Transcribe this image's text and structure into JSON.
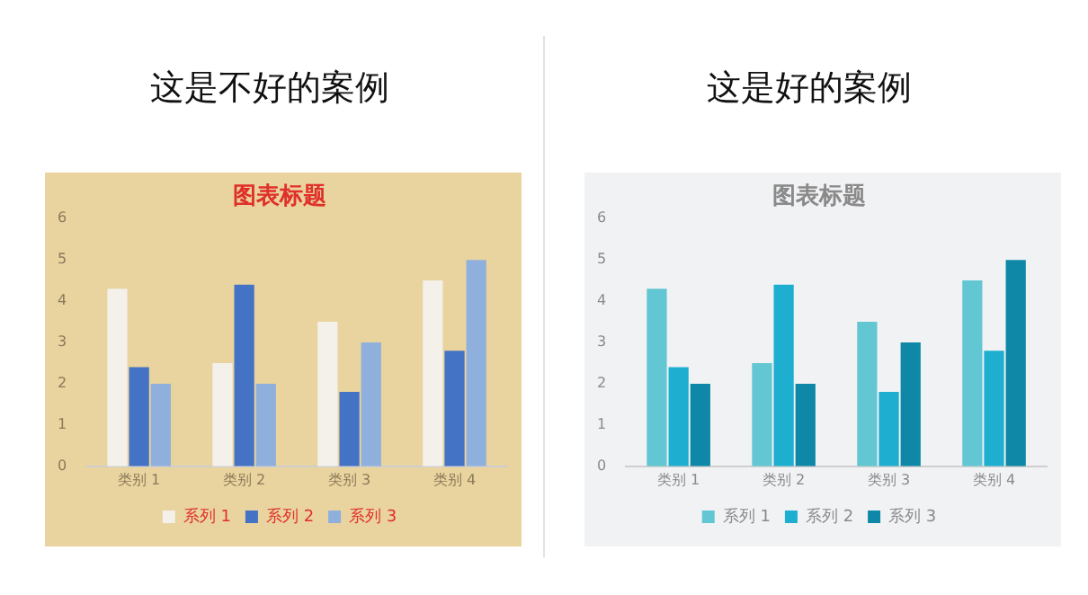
{
  "chart_data": [
    {
      "type": "bar",
      "title": "这是不好的案例",
      "subtitle": "图表标题",
      "categories": [
        "类别 1",
        "类别 2",
        "类别 3",
        "类别 4"
      ],
      "series": [
        {
          "name": "系列 1",
          "color": "#f4f1ea",
          "values": [
            4.3,
            2.5,
            3.5,
            4.5
          ]
        },
        {
          "name": "系列 2",
          "color": "#4472c4",
          "values": [
            2.4,
            4.4,
            1.8,
            2.8
          ]
        },
        {
          "name": "系列 3",
          "color": "#8fb0dc",
          "values": [
            2,
            2,
            3,
            5
          ]
        }
      ],
      "ylim": [
        0,
        6
      ],
      "yticks": [
        0,
        1,
        2,
        3,
        4,
        5,
        6
      ],
      "grid": false,
      "legend": "bottom"
    },
    {
      "type": "bar",
      "title": "这是好的案例",
      "subtitle": "图表标题",
      "categories": [
        "类别 1",
        "类别 2",
        "类别 3",
        "类别 4"
      ],
      "series": [
        {
          "name": "系列 1",
          "color": "#62c6d3",
          "values": [
            4.3,
            2.5,
            3.5,
            4.5
          ]
        },
        {
          "name": "系列 2",
          "color": "#1daed0",
          "values": [
            2.4,
            4.4,
            1.8,
            2.8
          ]
        },
        {
          "name": "系列 3",
          "color": "#0e88a6",
          "values": [
            2,
            2,
            3,
            5
          ]
        }
      ],
      "ylim": [
        0,
        6
      ],
      "yticks": [
        0,
        1,
        2,
        3,
        4,
        5,
        6
      ],
      "grid": false,
      "legend": "bottom"
    }
  ]
}
